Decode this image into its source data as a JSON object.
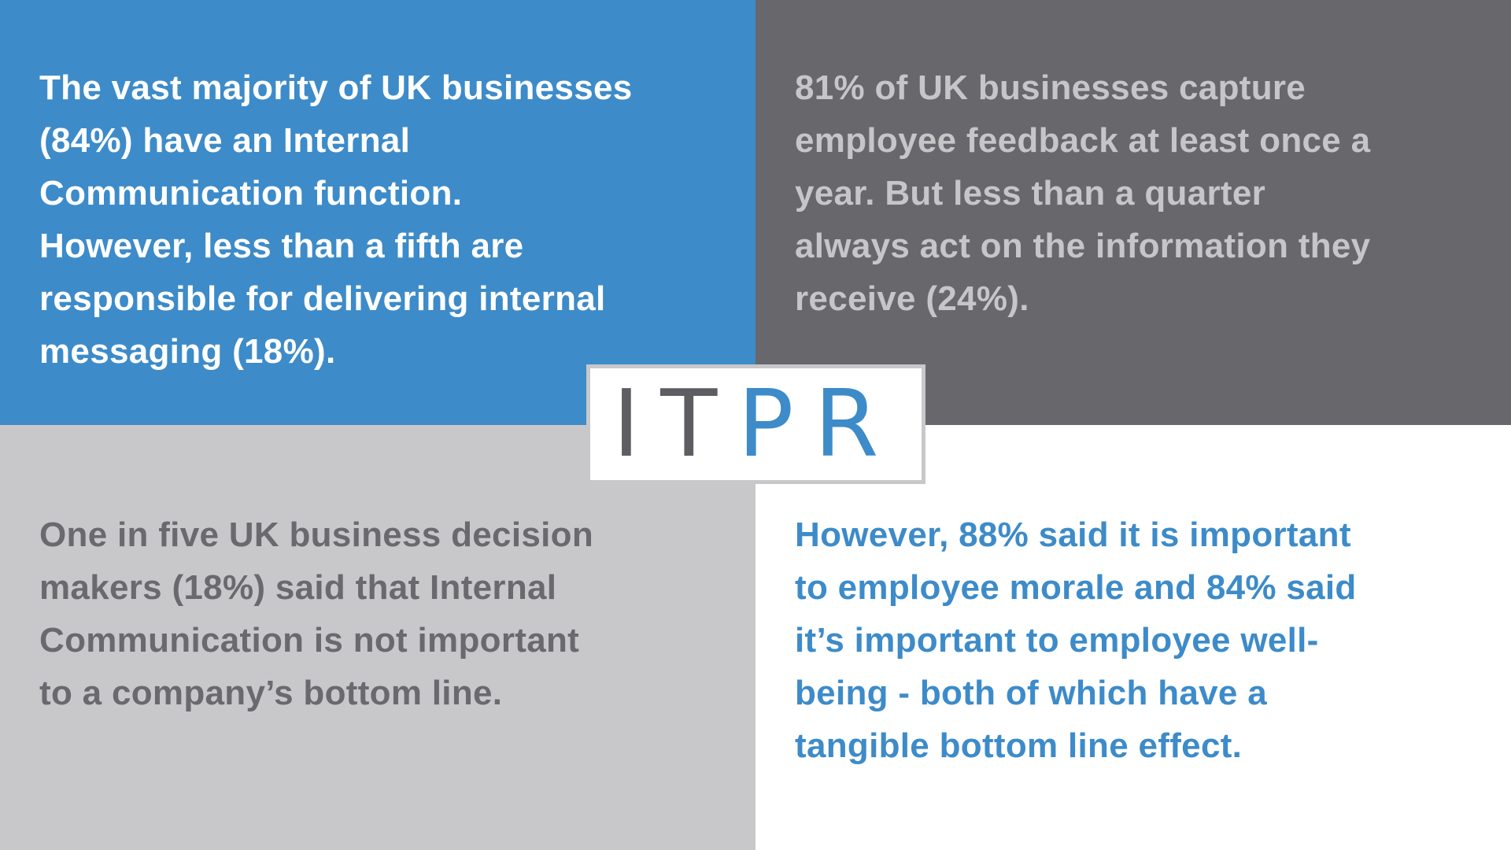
{
  "quadrants": [
    {
      "lines": [
        "The vast majority of UK businesses",
        "(84%) have an Internal",
        "Communication function.",
        "However, less than a fifth are",
        "responsible for delivering internal",
        "messaging (18%)."
      ]
    },
    {
      "lines": [
        "81% of UK businesses capture",
        "employee feedback at least once a",
        "year. But less than a quarter",
        "always act on the information they",
        "receive (24%)."
      ]
    },
    {
      "lines": [
        "One in five UK business decision",
        "makers (18%) said that Internal",
        "Communication is not important",
        "to a company’s bottom line."
      ]
    },
    {
      "lines": [
        "However, 88% said it is important",
        "to employee morale and 84% said",
        "it’s important to employee well-",
        "being - both of which have a",
        "tangible bottom line effect."
      ]
    }
  ],
  "logo": {
    "dark": "IT",
    "accent": "PR"
  }
}
